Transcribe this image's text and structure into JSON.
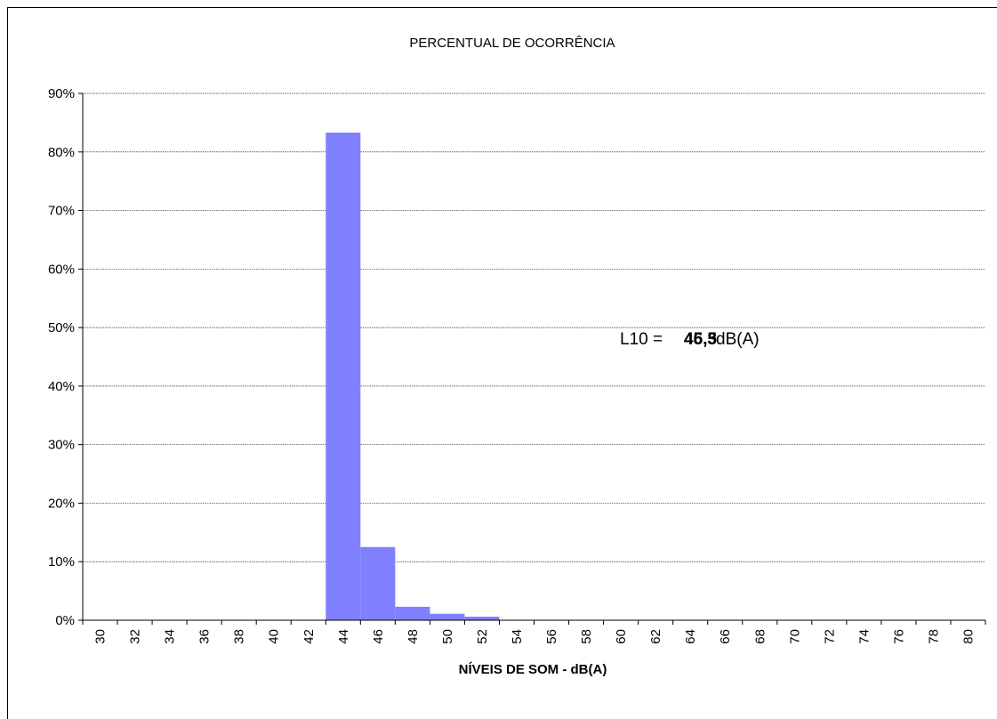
{
  "chart_data": {
    "type": "bar",
    "title": "PERCENTUAL DE OCORRÊNCIA",
    "xlabel": "NÍVEIS DE SOM - dB(A)",
    "ylabel": "",
    "categories": [
      "30",
      "32",
      "34",
      "36",
      "38",
      "40",
      "42",
      "44",
      "46",
      "48",
      "50",
      "52",
      "54",
      "56",
      "58",
      "60",
      "62",
      "64",
      "66",
      "68",
      "70",
      "72",
      "74",
      "76",
      "78",
      "80"
    ],
    "values": [
      0,
      0,
      0,
      0,
      0,
      0,
      0,
      83.3,
      12.5,
      2.3,
      1.1,
      0.6,
      0,
      0,
      0,
      0,
      0,
      0,
      0,
      0,
      0,
      0,
      0,
      0,
      0,
      0
    ],
    "ylim": [
      0,
      90
    ],
    "yticks": [
      0,
      10,
      20,
      30,
      40,
      50,
      60,
      70,
      80,
      90
    ],
    "ytick_suffix": "%",
    "grid": true,
    "bar_color": "#8080ff",
    "annotation": {
      "label": "L10 =",
      "values": [
        "46,3",
        "45,5"
      ],
      "unit": "dB(A)",
      "at_y": 50
    }
  }
}
